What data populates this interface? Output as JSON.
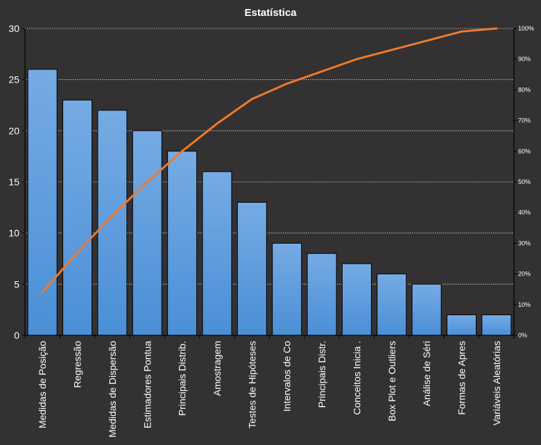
{
  "chart_data": {
    "type": "bar",
    "title": "Estatística",
    "categories": [
      "Medidas de Posição",
      "Regressão",
      "Medidas de Dispersão",
      "Estimadores Pontua",
      "Principais Distrib.",
      "Amostragem",
      "Testes de Hipóteses",
      "Intervalos de Co",
      "Principais Distr.",
      "Conceitos Inicia .",
      "Box Plot e Outliers",
      "Análise de Séri",
      "Formas de Apres",
      "Variáveis Aleatórias"
    ],
    "series": [
      {
        "type": "bar",
        "axis": "left",
        "values": [
          26,
          23,
          22,
          20,
          18,
          16,
          13,
          9,
          8,
          7,
          6,
          5,
          2,
          2
        ]
      },
      {
        "type": "line",
        "axis": "right",
        "values": [
          0.14,
          0.27,
          0.39,
          0.5,
          0.6,
          0.69,
          0.77,
          0.82,
          0.86,
          0.9,
          0.93,
          0.96,
          0.99,
          1.0
        ]
      }
    ],
    "ylim": [
      0,
      30
    ],
    "y_ticks": [
      "0",
      "5",
      "10",
      "15",
      "20",
      "25",
      "30"
    ],
    "y2lim": [
      0,
      1
    ],
    "y2_ticks": [
      "0%",
      "10%",
      "20%",
      "30%",
      "40%",
      "50%",
      "60%",
      "70%",
      "80%",
      "90%",
      "100%"
    ],
    "grid": true,
    "colors": {
      "background": "#333132",
      "bar": "#4a8fd6",
      "bar_top": "#76abe4",
      "line": "#ee7a2c",
      "grid": "#d9d9d9",
      "text": "#ffffff"
    }
  }
}
